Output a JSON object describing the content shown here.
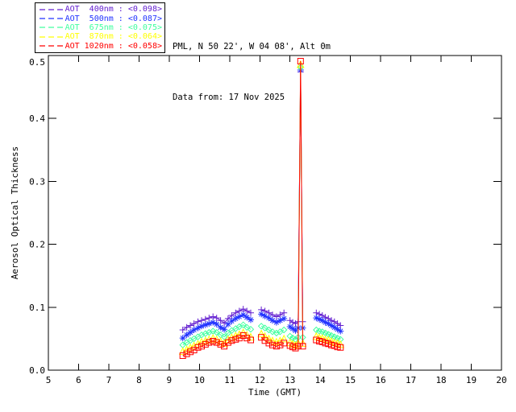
{
  "header": {
    "line1": "PML, N 50 22', W 04 08', Alt 0m",
    "line2": "Data from: 17 Nov 2025"
  },
  "chart_data": {
    "type": "line",
    "title": "",
    "xlabel": "Time (GMT)",
    "ylabel": "Aerosol Optical Thickness",
    "xlim": [
      5,
      20
    ],
    "ylim": [
      0.0,
      0.5
    ],
    "xticks": [
      5,
      6,
      7,
      8,
      9,
      10,
      11,
      12,
      13,
      14,
      15,
      16,
      17,
      18,
      19,
      20
    ],
    "yticks": [
      0.0,
      0.1,
      0.2,
      0.3,
      0.4,
      0.5
    ],
    "grid": false,
    "legend_position": "top-left-outside",
    "series": [
      {
        "name": "AOT 400nm",
        "legend_label": "AOT  400nm : <0.098>",
        "mean_value": "<0.098>",
        "color": "#6420d0",
        "marker": "plus",
        "segments": [
          {
            "x": [
              9.45,
              9.58,
              9.7,
              9.82,
              9.95,
              10.07,
              10.2,
              10.32,
              10.45,
              10.57,
              10.7,
              10.82,
              10.95,
              11.07,
              11.2,
              11.32,
              11.45,
              11.57,
              11.7
            ],
            "y": [
              0.064,
              0.068,
              0.071,
              0.074,
              0.077,
              0.079,
              0.081,
              0.083,
              0.085,
              0.083,
              0.079,
              0.075,
              0.082,
              0.087,
              0.091,
              0.094,
              0.097,
              0.094,
              0.091
            ]
          },
          {
            "x": [
              12.05,
              12.17,
              12.3,
              12.42,
              12.55,
              12.67,
              12.8
            ],
            "y": [
              0.096,
              0.094,
              0.091,
              0.088,
              0.085,
              0.088,
              0.091
            ]
          },
          {
            "x": [
              13.0,
              13.09,
              13.18,
              13.27,
              13.35,
              13.42
            ],
            "y": [
              0.079,
              0.076,
              0.074,
              0.077,
              0.474,
              0.077
            ]
          },
          {
            "x": [
              13.87,
              13.97,
              14.07,
              14.17,
              14.27,
              14.37,
              14.47,
              14.57,
              14.67
            ],
            "y": [
              0.091,
              0.089,
              0.087,
              0.084,
              0.082,
              0.079,
              0.077,
              0.074,
              0.071
            ]
          }
        ]
      },
      {
        "name": "AOT 500nm",
        "legend_label": "AOT  500nm : <0.087>",
        "mean_value": "<0.087>",
        "color": "#2233ff",
        "marker": "asterisk",
        "segments": [
          {
            "x": [
              9.45,
              9.58,
              9.7,
              9.82,
              9.95,
              10.07,
              10.2,
              10.32,
              10.45,
              10.57,
              10.7,
              10.82,
              10.95,
              11.07,
              11.2,
              11.32,
              11.45,
              11.57,
              11.7
            ],
            "y": [
              0.051,
              0.056,
              0.06,
              0.064,
              0.067,
              0.07,
              0.072,
              0.074,
              0.076,
              0.073,
              0.068,
              0.065,
              0.073,
              0.078,
              0.082,
              0.085,
              0.088,
              0.084,
              0.08
            ]
          },
          {
            "x": [
              12.05,
              12.17,
              12.3,
              12.42,
              12.55,
              12.67,
              12.8
            ],
            "y": [
              0.089,
              0.086,
              0.083,
              0.079,
              0.076,
              0.079,
              0.082
            ]
          },
          {
            "x": [
              13.0,
              13.09,
              13.18,
              13.27,
              13.35,
              13.42
            ],
            "y": [
              0.069,
              0.066,
              0.063,
              0.067,
              0.477,
              0.067
            ]
          },
          {
            "x": [
              13.87,
              13.97,
              14.07,
              14.17,
              14.27,
              14.37,
              14.47,
              14.57,
              14.67
            ],
            "y": [
              0.083,
              0.081,
              0.079,
              0.076,
              0.074,
              0.071,
              0.068,
              0.065,
              0.062
            ]
          }
        ]
      },
      {
        "name": "AOT 675nm",
        "legend_label": "AOT  675nm : <0.075>",
        "mean_value": "<0.075>",
        "color": "#40ff9f",
        "marker": "diamond",
        "segments": [
          {
            "x": [
              9.45,
              9.58,
              9.7,
              9.82,
              9.95,
              10.07,
              10.2,
              10.32,
              10.45,
              10.57,
              10.7,
              10.82,
              10.95,
              11.07,
              11.2,
              11.32,
              11.45,
              11.57,
              11.7
            ],
            "y": [
              0.04,
              0.044,
              0.047,
              0.05,
              0.053,
              0.056,
              0.058,
              0.06,
              0.062,
              0.06,
              0.056,
              0.053,
              0.059,
              0.063,
              0.066,
              0.069,
              0.072,
              0.068,
              0.065
            ]
          },
          {
            "x": [
              12.05,
              12.17,
              12.3,
              12.42,
              12.55,
              12.67,
              12.8
            ],
            "y": [
              0.07,
              0.067,
              0.064,
              0.061,
              0.059,
              0.061,
              0.064
            ]
          },
          {
            "x": [
              13.0,
              13.09,
              13.18,
              13.27,
              13.35,
              13.42
            ],
            "y": [
              0.054,
              0.051,
              0.049,
              0.052,
              0.481,
              0.052
            ]
          },
          {
            "x": [
              13.87,
              13.97,
              14.07,
              14.17,
              14.27,
              14.37,
              14.47,
              14.57,
              14.67
            ],
            "y": [
              0.064,
              0.062,
              0.061,
              0.059,
              0.057,
              0.055,
              0.053,
              0.051,
              0.049
            ]
          }
        ]
      },
      {
        "name": "AOT 870nm",
        "legend_label": "AOT  870nm : <0.064>",
        "mean_value": "<0.064>",
        "color": "#ffff00",
        "marker": "triangle",
        "segments": [
          {
            "x": [
              9.45,
              9.58,
              9.7,
              9.82,
              9.95,
              10.07,
              10.2,
              10.32,
              10.45,
              10.57,
              10.7,
              10.82,
              10.95,
              11.07,
              11.2,
              11.32,
              11.45,
              11.57,
              11.7
            ],
            "y": [
              0.03,
              0.033,
              0.036,
              0.039,
              0.042,
              0.045,
              0.047,
              0.049,
              0.051,
              0.049,
              0.046,
              0.043,
              0.049,
              0.052,
              0.055,
              0.057,
              0.06,
              0.056,
              0.053
            ]
          },
          {
            "x": [
              12.05,
              12.17,
              12.3,
              12.42,
              12.55,
              12.67,
              12.8
            ],
            "y": [
              0.058,
              0.054,
              0.05,
              0.047,
              0.045,
              0.047,
              0.05
            ]
          },
          {
            "x": [
              13.0,
              13.09,
              13.18,
              13.27,
              13.35,
              13.42
            ],
            "y": [
              0.044,
              0.042,
              0.04,
              0.043,
              0.486,
              0.043
            ]
          },
          {
            "x": [
              13.87,
              13.97,
              14.07,
              14.17,
              14.27,
              14.37,
              14.47,
              14.57,
              14.67
            ],
            "y": [
              0.054,
              0.052,
              0.051,
              0.049,
              0.048,
              0.046,
              0.044,
              0.043,
              0.041
            ]
          }
        ]
      },
      {
        "name": "AOT 1020nm",
        "legend_label": "AOT 1020nm : <0.058>",
        "mean_value": "<0.058>",
        "color": "#ff0000",
        "marker": "square",
        "segments": [
          {
            "x": [
              9.45,
              9.58,
              9.7,
              9.82,
              9.95,
              10.07,
              10.2,
              10.32,
              10.45,
              10.57,
              10.7,
              10.82,
              10.95,
              11.07,
              11.2,
              11.32,
              11.45,
              11.57,
              11.7
            ],
            "y": [
              0.023,
              0.026,
              0.029,
              0.032,
              0.036,
              0.038,
              0.041,
              0.044,
              0.046,
              0.044,
              0.041,
              0.038,
              0.044,
              0.047,
              0.049,
              0.051,
              0.055,
              0.051,
              0.048
            ]
          },
          {
            "x": [
              12.05,
              12.17,
              12.3,
              12.42,
              12.55,
              12.67,
              12.8
            ],
            "y": [
              0.052,
              0.047,
              0.043,
              0.04,
              0.038,
              0.04,
              0.043
            ]
          },
          {
            "x": [
              13.0,
              13.09,
              13.18,
              13.27,
              13.35,
              13.42
            ],
            "y": [
              0.039,
              0.037,
              0.035,
              0.038,
              0.491,
              0.038
            ]
          },
          {
            "x": [
              13.87,
              13.97,
              14.07,
              14.17,
              14.27,
              14.37,
              14.47,
              14.57,
              14.67
            ],
            "y": [
              0.048,
              0.046,
              0.045,
              0.043,
              0.042,
              0.04,
              0.039,
              0.037,
              0.036
            ]
          }
        ]
      }
    ]
  }
}
